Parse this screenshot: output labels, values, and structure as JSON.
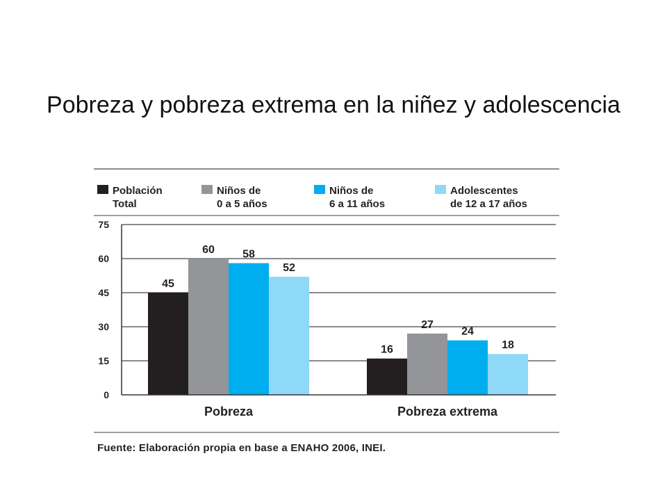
{
  "slide": {
    "title": "Pobreza y pobreza extrema en la niñez y adolescencia"
  },
  "chart_data": {
    "type": "bar",
    "categories": [
      "Pobreza",
      "Pobreza extrema"
    ],
    "series": [
      {
        "name": "Población Total",
        "legend_lines": [
          "Población",
          "Total"
        ],
        "color": "#231f20",
        "values": [
          45,
          16
        ]
      },
      {
        "name": "Niños de 0 a 5 años",
        "legend_lines": [
          "Niños de",
          "0 a 5 años"
        ],
        "color": "#939598",
        "values": [
          60,
          27
        ]
      },
      {
        "name": "Niños de 6 a 11 años",
        "legend_lines": [
          "Niños de",
          "6 a 11 años"
        ],
        "color": "#00aeef",
        "values": [
          58,
          24
        ]
      },
      {
        "name": "Adolescentes de 12 a 17 años",
        "legend_lines": [
          "Adolescentes",
          "de 12 a 17 años"
        ],
        "color": "#8ed8f8",
        "values": [
          52,
          18
        ]
      }
    ],
    "ylim": [
      0,
      75
    ],
    "yticks": [
      0,
      15,
      30,
      45,
      60,
      75
    ],
    "grid": true,
    "legend_position": "top",
    "source": "Fuente: Elaboración propia en base a ENAHO 2006, INEI."
  }
}
